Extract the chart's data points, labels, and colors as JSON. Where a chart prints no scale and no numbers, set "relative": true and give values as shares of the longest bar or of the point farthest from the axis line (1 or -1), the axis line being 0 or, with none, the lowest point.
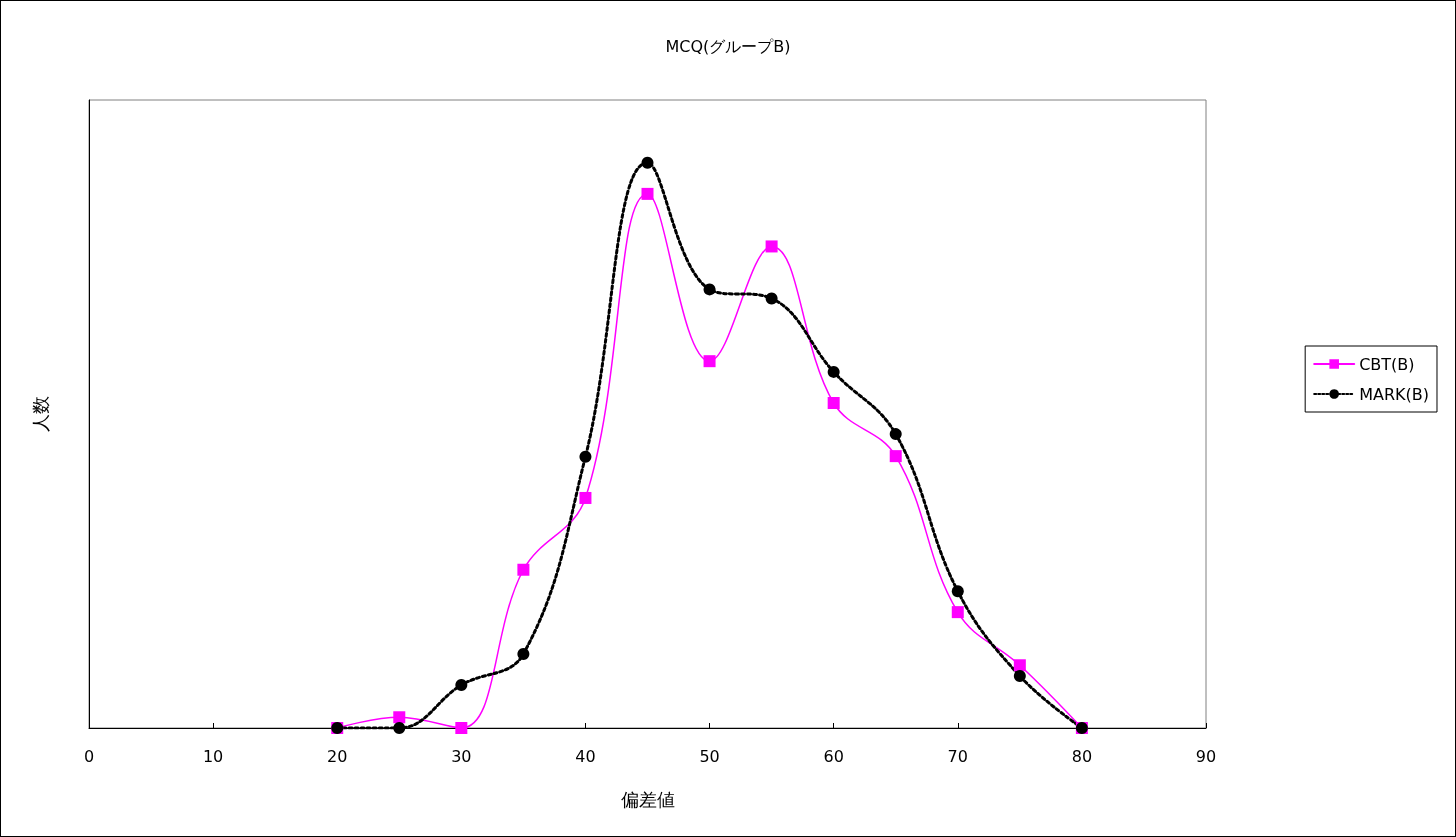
{
  "chart_data": {
    "type": "line",
    "title": "MCQ(グループB)",
    "xlabel": "偏差値",
    "ylabel": "人数",
    "relative": true,
    "x": [
      20,
      25,
      30,
      35,
      40,
      45,
      50,
      55,
      60,
      65,
      70,
      75,
      80
    ],
    "xlim": [
      0,
      90
    ],
    "xticks": [
      0,
      10,
      20,
      30,
      40,
      50,
      60,
      70,
      80,
      90
    ],
    "grid": false,
    "legend": "right",
    "series": [
      {
        "name": "CBT(B)",
        "color": "#ff00ff",
        "marker": "square",
        "line_style": "solid",
        "values": [
          0,
          0.019,
          0,
          0.28,
          0.407,
          0.945,
          0.649,
          0.852,
          0.575,
          0.481,
          0.205,
          0.111,
          0
        ]
      },
      {
        "name": "MARK(B)",
        "color": "#000000",
        "marker": "circle",
        "line_style": "dotted",
        "values": [
          0,
          0,
          0.076,
          0.131,
          0.48,
          1,
          0.776,
          0.76,
          0.63,
          0.52,
          0.242,
          0.092,
          0
        ]
      }
    ]
  }
}
